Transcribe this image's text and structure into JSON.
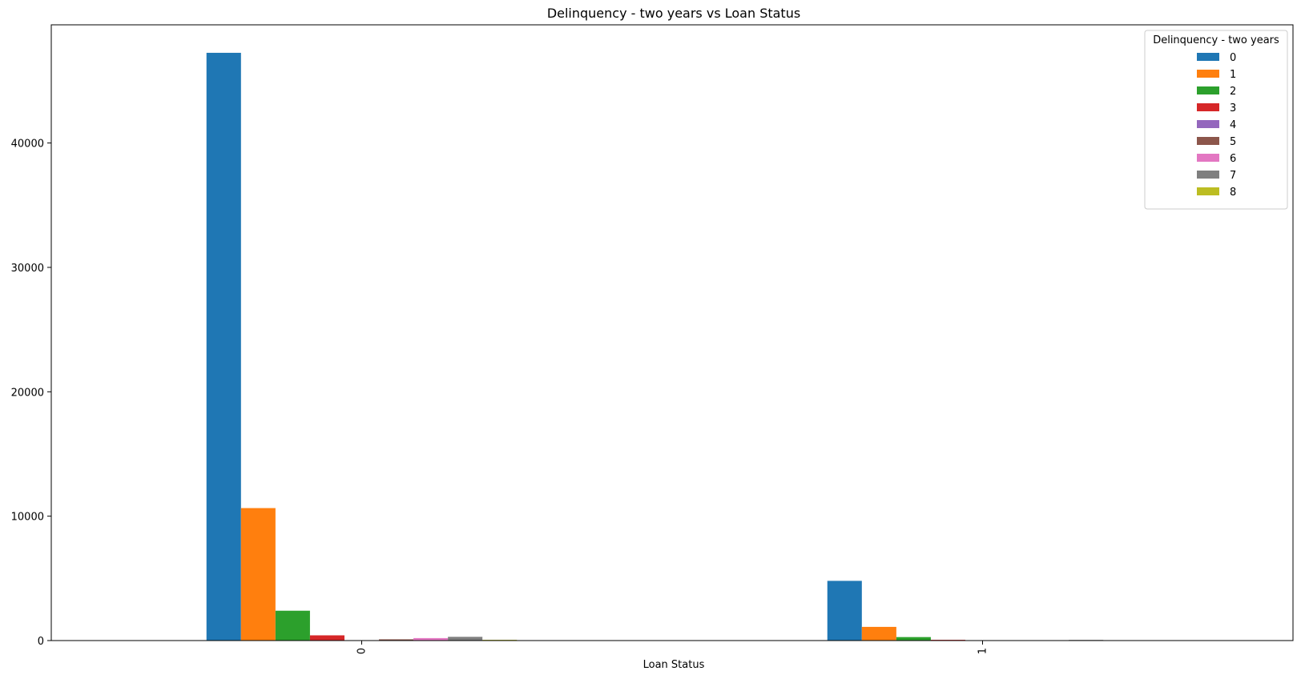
{
  "chart_data": {
    "type": "bar",
    "title": "Delinquency - two years vs Loan Status",
    "xlabel": "Loan Status",
    "ylabel": "",
    "categories": [
      "0",
      "1"
    ],
    "ylim": [
      0,
      49500
    ],
    "yticks": [
      0,
      10000,
      20000,
      30000,
      40000
    ],
    "ytick_labels": [
      "0",
      "10000",
      "20000",
      "30000",
      "40000"
    ],
    "legend": {
      "title": "Delinquency - two years",
      "position": "top-right"
    },
    "series": [
      {
        "name": "0",
        "color": "#1f77b4",
        "values": [
          47250,
          4800
        ]
      },
      {
        "name": "1",
        "color": "#ff7f0e",
        "values": [
          10650,
          1100
        ]
      },
      {
        "name": "2",
        "color": "#2ca02c",
        "values": [
          2400,
          280
        ]
      },
      {
        "name": "3",
        "color": "#d62728",
        "values": [
          420,
          60
        ]
      },
      {
        "name": "4",
        "color": "#9467bd",
        "values": [
          20,
          5
        ]
      },
      {
        "name": "5",
        "color": "#8c564b",
        "values": [
          100,
          20
        ]
      },
      {
        "name": "6",
        "color": "#e377c2",
        "values": [
          200,
          30
        ]
      },
      {
        "name": "7",
        "color": "#7f7f7f",
        "values": [
          300,
          50
        ]
      },
      {
        "name": "8",
        "color": "#bcbd22",
        "values": [
          60,
          10
        ]
      }
    ],
    "grid": false
  }
}
